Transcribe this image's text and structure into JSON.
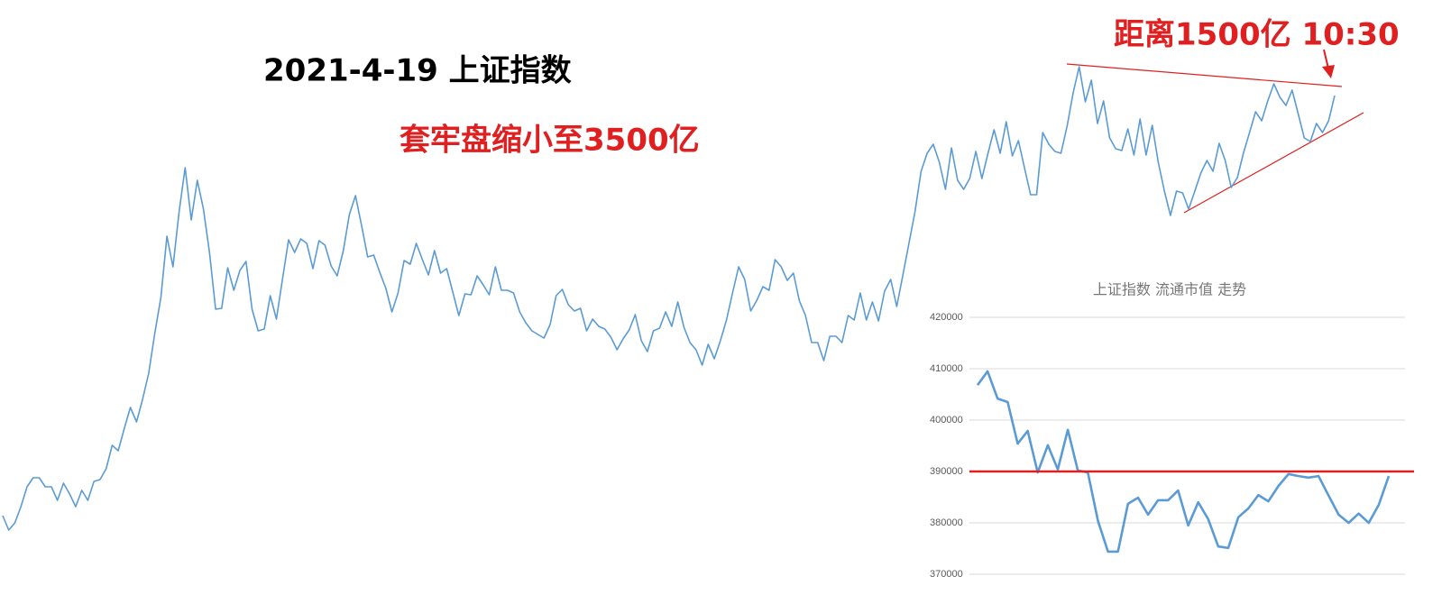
{
  "chart_data": [
    {
      "type": "line",
      "title": "2021-4-19 上证指数",
      "annotations": [
        "套牢盘缩小至3500亿",
        "距离1500亿 10:30"
      ],
      "color": "#5b9bd5",
      "values": [
        108,
        92,
        100,
        118,
        140,
        150,
        150,
        140,
        140,
        125,
        144,
        132,
        118,
        136,
        125,
        146,
        148,
        160,
        186,
        180,
        205,
        228,
        212,
        237,
        266,
        310,
        350,
        418,
        384,
        445,
        494,
        436,
        480,
        448,
        400,
        337,
        338,
        383,
        358,
        380,
        390,
        337,
        313,
        315,
        352,
        326,
        370,
        414,
        400,
        415,
        410,
        382,
        413,
        408,
        385,
        374,
        402,
        442,
        463,
        430,
        395,
        397,
        378,
        360,
        334,
        355,
        391,
        387,
        410,
        392,
        375,
        402,
        377,
        382,
        356,
        330,
        354,
        353,
        374,
        364,
        353,
        384,
        358,
        358,
        355,
        334,
        322,
        313,
        309,
        305,
        320,
        352,
        359,
        342,
        335,
        338,
        313,
        326,
        318,
        315,
        306,
        292,
        304,
        314,
        331,
        302,
        290,
        313,
        316,
        334,
        318,
        345,
        317,
        300,
        292,
        275,
        298,
        282,
        302,
        325,
        355,
        384,
        370,
        335,
        347,
        362,
        358,
        392,
        384,
        369,
        377,
        346,
        330,
        300,
        300,
        280,
        307,
        307,
        300,
        330,
        325,
        355,
        325,
        345,
        324,
        357,
        370,
        340,
        375,
        410,
        445,
        490,
        510,
        520,
        500,
        470,
        516,
        480,
        470,
        482,
        512,
        482,
        510,
        536,
        510,
        545,
        507,
        524,
        494,
        464,
        464,
        533,
        520,
        512,
        510,
        540,
        577,
        606,
        567,
        591,
        543,
        568,
        527,
        515,
        513,
        537,
        508,
        548,
        508,
        541,
        500,
        468,
        441,
        468,
        466,
        448,
        468,
        488,
        502,
        490,
        521,
        502,
        472,
        483,
        510,
        533,
        556,
        546,
        568,
        587,
        572,
        563,
        580,
        554,
        527,
        523,
        543,
        533,
        546,
        574
      ]
    },
    {
      "type": "line",
      "title": "上证指数 流通市值 走势",
      "color": "#5b9bd5",
      "values": [
        406800,
        409500,
        404200,
        403500,
        395400,
        397900,
        389800,
        395100,
        390400,
        398100,
        390200,
        389800,
        380400,
        374400,
        374400,
        383700,
        384900,
        381600,
        384400,
        384400,
        386300,
        379500,
        384000,
        380700,
        375400,
        375100,
        381100,
        382800,
        385400,
        384200,
        387200,
        389500,
        389100,
        388800,
        389100,
        385300,
        381600,
        380000,
        381800,
        380000,
        383500,
        389100
      ],
      "ylim": [
        370000,
        420000
      ],
      "yticks": [
        370000,
        380000,
        390000,
        400000,
        410000,
        420000
      ],
      "grid": true,
      "reference_line": {
        "value": 390000,
        "color": "#e02020"
      }
    }
  ]
}
